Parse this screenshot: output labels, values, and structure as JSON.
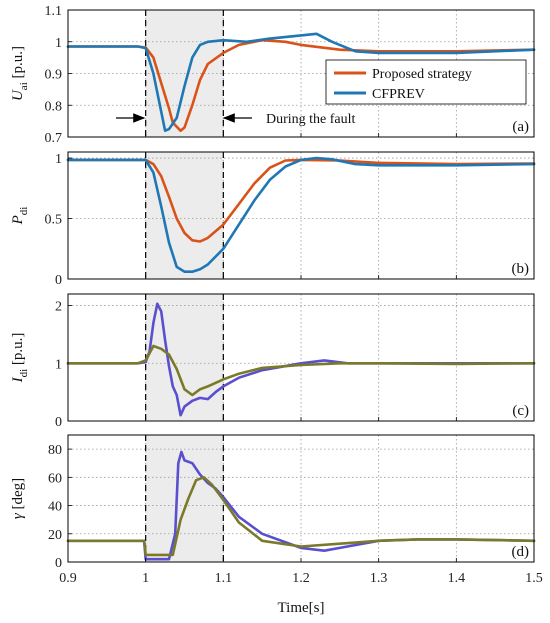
{
  "figure": {
    "x_axis_label": "Time[s]",
    "x_ticks": [
      "0.9",
      "1",
      "1.1",
      "1.2",
      "1.3",
      "1.4",
      "1.5"
    ],
    "fault_start": 1.0,
    "fault_end": 1.1,
    "fault_annotation": "During the fault",
    "colors": {
      "proposed": "#D95319",
      "cfprev": "#1f77b4",
      "purple": "#5a4fcf",
      "olive": "#7a7a2a",
      "fault_band": "#ececec"
    }
  },
  "chart_data": [
    {
      "type": "line",
      "panel_tag": "(a)",
      "ylabel_main": "U",
      "ylabel_sub": "ai",
      "ylabel_unit": "[p.u.]",
      "xlim": [
        0.9,
        1.5
      ],
      "ylim": [
        0.7,
        1.1
      ],
      "y_ticks": [
        "0.7",
        "0.8",
        "0.9",
        "1",
        "1.1"
      ],
      "legend": [
        "Proposed strategy",
        "CFPREV"
      ],
      "series": [
        {
          "name": "Proposed strategy",
          "color": "#D95319",
          "points": [
            [
              0.9,
              0.985
            ],
            [
              0.99,
              0.985
            ],
            [
              1.0,
              0.982
            ],
            [
              1.01,
              0.95
            ],
            [
              1.02,
              0.87
            ],
            [
              1.03,
              0.79
            ],
            [
              1.035,
              0.745
            ],
            [
              1.045,
              0.72
            ],
            [
              1.05,
              0.73
            ],
            [
              1.06,
              0.8
            ],
            [
              1.07,
              0.88
            ],
            [
              1.08,
              0.93
            ],
            [
              1.1,
              0.965
            ],
            [
              1.12,
              0.99
            ],
            [
              1.15,
              1.005
            ],
            [
              1.18,
              1.0
            ],
            [
              1.2,
              0.99
            ],
            [
              1.25,
              0.975
            ],
            [
              1.3,
              0.97
            ],
            [
              1.4,
              0.97
            ],
            [
              1.5,
              0.975
            ]
          ]
        },
        {
          "name": "CFPREV",
          "color": "#1f77b4",
          "points": [
            [
              0.9,
              0.985
            ],
            [
              0.99,
              0.985
            ],
            [
              1.0,
              0.98
            ],
            [
              1.01,
              0.9
            ],
            [
              1.02,
              0.78
            ],
            [
              1.025,
              0.72
            ],
            [
              1.03,
              0.725
            ],
            [
              1.04,
              0.76
            ],
            [
              1.05,
              0.86
            ],
            [
              1.06,
              0.95
            ],
            [
              1.07,
              0.99
            ],
            [
              1.08,
              1.0
            ],
            [
              1.1,
              1.005
            ],
            [
              1.13,
              1.0
            ],
            [
              1.16,
              1.01
            ],
            [
              1.2,
              1.02
            ],
            [
              1.22,
              1.025
            ],
            [
              1.24,
              1.0
            ],
            [
              1.27,
              0.97
            ],
            [
              1.3,
              0.965
            ],
            [
              1.4,
              0.965
            ],
            [
              1.5,
              0.975
            ]
          ]
        }
      ]
    },
    {
      "type": "line",
      "panel_tag": "(b)",
      "ylabel_main": "P",
      "ylabel_sub": "di",
      "ylabel_unit": "",
      "xlim": [
        0.9,
        1.5
      ],
      "ylim": [
        0,
        1.05
      ],
      "y_ticks": [
        "0",
        "0.5",
        "1"
      ],
      "series": [
        {
          "name": "Proposed strategy",
          "color": "#D95319",
          "points": [
            [
              0.9,
              0.985
            ],
            [
              1.0,
              0.985
            ],
            [
              1.01,
              0.95
            ],
            [
              1.02,
              0.85
            ],
            [
              1.03,
              0.68
            ],
            [
              1.04,
              0.5
            ],
            [
              1.05,
              0.38
            ],
            [
              1.06,
              0.32
            ],
            [
              1.07,
              0.31
            ],
            [
              1.08,
              0.34
            ],
            [
              1.1,
              0.45
            ],
            [
              1.12,
              0.62
            ],
            [
              1.14,
              0.79
            ],
            [
              1.16,
              0.92
            ],
            [
              1.18,
              0.98
            ],
            [
              1.2,
              0.985
            ],
            [
              1.25,
              0.98
            ],
            [
              1.3,
              0.96
            ],
            [
              1.4,
              0.95
            ],
            [
              1.5,
              0.955
            ]
          ]
        },
        {
          "name": "CFPREV",
          "color": "#1f77b4",
          "points": [
            [
              0.9,
              0.985
            ],
            [
              1.0,
              0.985
            ],
            [
              1.01,
              0.88
            ],
            [
              1.02,
              0.6
            ],
            [
              1.03,
              0.3
            ],
            [
              1.04,
              0.1
            ],
            [
              1.05,
              0.06
            ],
            [
              1.06,
              0.06
            ],
            [
              1.07,
              0.08
            ],
            [
              1.08,
              0.12
            ],
            [
              1.1,
              0.25
            ],
            [
              1.12,
              0.45
            ],
            [
              1.14,
              0.65
            ],
            [
              1.16,
              0.82
            ],
            [
              1.18,
              0.93
            ],
            [
              1.2,
              0.985
            ],
            [
              1.22,
              1.0
            ],
            [
              1.24,
              0.99
            ],
            [
              1.27,
              0.95
            ],
            [
              1.3,
              0.94
            ],
            [
              1.4,
              0.94
            ],
            [
              1.5,
              0.95
            ]
          ]
        }
      ]
    },
    {
      "type": "line",
      "panel_tag": "(c)",
      "ylabel_main": "I",
      "ylabel_sub": "di",
      "ylabel_unit": "[p.u.]",
      "xlim": [
        0.9,
        1.5
      ],
      "ylim": [
        0,
        2.2
      ],
      "y_ticks": [
        "0",
        "1",
        "2"
      ],
      "series": [
        {
          "color": "#5a4fcf",
          "points": [
            [
              0.9,
              1.0
            ],
            [
              0.99,
              1.0
            ],
            [
              1.0,
              1.02
            ],
            [
              1.005,
              1.2
            ],
            [
              1.01,
              1.7
            ],
            [
              1.015,
              2.03
            ],
            [
              1.02,
              1.9
            ],
            [
              1.025,
              1.4
            ],
            [
              1.03,
              0.95
            ],
            [
              1.035,
              0.6
            ],
            [
              1.04,
              0.45
            ],
            [
              1.045,
              0.1
            ],
            [
              1.05,
              0.25
            ],
            [
              1.06,
              0.35
            ],
            [
              1.07,
              0.4
            ],
            [
              1.08,
              0.38
            ],
            [
              1.09,
              0.5
            ],
            [
              1.1,
              0.6
            ],
            [
              1.12,
              0.75
            ],
            [
              1.15,
              0.88
            ],
            [
              1.2,
              1.0
            ],
            [
              1.23,
              1.05
            ],
            [
              1.26,
              1.0
            ],
            [
              1.3,
              1.0
            ],
            [
              1.4,
              1.0
            ],
            [
              1.5,
              1.0
            ]
          ]
        },
        {
          "color": "#7a7a2a",
          "points": [
            [
              0.9,
              1.0
            ],
            [
              0.99,
              1.0
            ],
            [
              1.0,
              1.05
            ],
            [
              1.01,
              1.3
            ],
            [
              1.02,
              1.25
            ],
            [
              1.03,
              1.15
            ],
            [
              1.04,
              0.9
            ],
            [
              1.05,
              0.55
            ],
            [
              1.06,
              0.45
            ],
            [
              1.07,
              0.55
            ],
            [
              1.08,
              0.6
            ],
            [
              1.1,
              0.72
            ],
            [
              1.12,
              0.82
            ],
            [
              1.15,
              0.92
            ],
            [
              1.2,
              0.97
            ],
            [
              1.25,
              1.0
            ],
            [
              1.3,
              1.0
            ],
            [
              1.4,
              0.99
            ],
            [
              1.5,
              1.0
            ]
          ]
        }
      ]
    },
    {
      "type": "line",
      "panel_tag": "(d)",
      "ylabel_main": "γ",
      "ylabel_sub": "",
      "ylabel_unit": "[deg]",
      "xlim": [
        0.9,
        1.5
      ],
      "ylim": [
        0,
        90
      ],
      "y_ticks": [
        "0",
        "20",
        "40",
        "60",
        "80"
      ],
      "series": [
        {
          "color": "#5a4fcf",
          "points": [
            [
              0.9,
              15
            ],
            [
              0.998,
              15
            ],
            [
              1.0,
              2
            ],
            [
              1.03,
              2
            ],
            [
              1.038,
              20
            ],
            [
              1.042,
              70
            ],
            [
              1.046,
              78
            ],
            [
              1.05,
              72
            ],
            [
              1.06,
              70
            ],
            [
              1.07,
              62
            ],
            [
              1.08,
              56
            ],
            [
              1.09,
              52
            ],
            [
              1.1,
              46
            ],
            [
              1.12,
              32
            ],
            [
              1.15,
              20
            ],
            [
              1.2,
              10
            ],
            [
              1.23,
              8
            ],
            [
              1.25,
              10
            ],
            [
              1.3,
              15
            ],
            [
              1.35,
              16
            ],
            [
              1.4,
              16
            ],
            [
              1.5,
              15
            ]
          ]
        },
        {
          "color": "#7a7a2a",
          "points": [
            [
              0.9,
              15
            ],
            [
              0.998,
              15
            ],
            [
              1.0,
              5
            ],
            [
              1.02,
              5
            ],
            [
              1.035,
              5
            ],
            [
              1.045,
              30
            ],
            [
              1.055,
              45
            ],
            [
              1.065,
              58
            ],
            [
              1.075,
              60
            ],
            [
              1.085,
              55
            ],
            [
              1.1,
              44
            ],
            [
              1.12,
              28
            ],
            [
              1.15,
              15
            ],
            [
              1.2,
              11
            ],
            [
              1.25,
              13
            ],
            [
              1.3,
              15
            ],
            [
              1.35,
              16
            ],
            [
              1.4,
              16
            ],
            [
              1.5,
              15
            ]
          ]
        }
      ]
    }
  ]
}
